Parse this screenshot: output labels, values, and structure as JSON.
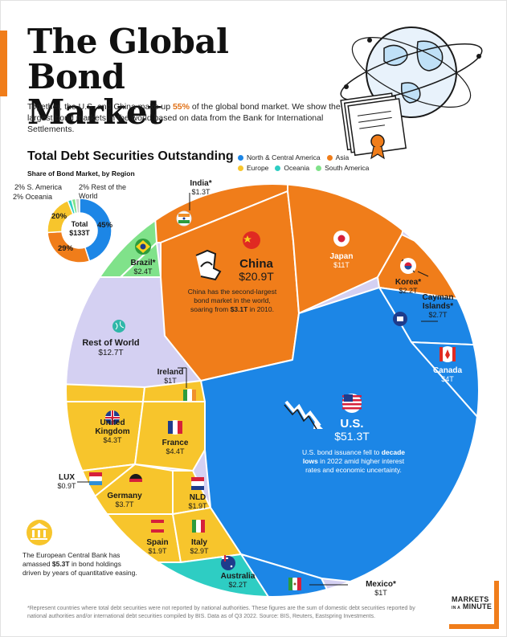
{
  "page": {
    "title_line1": "The Global",
    "title_line2": "Bond Market",
    "intro_pre": "Together, the U.S. and China make up ",
    "intro_highlight": "55%",
    "intro_post": " of the global bond market. We show the largest bond markets in the world based on data from the Bank for International Settlements.",
    "section_title": "Total Debt Securities Outstanding",
    "share_title": "Share of Bond Market, by Region",
    "footnote": "*Represent countries where total debt securities were not reported by national authorities. These figures are the sum of domestic debt securities reported by national authorities and/or international debt securities compiled by BIS. Data as of Q3 2022. Source: BIS, Reuters, Eastspring Investments.",
    "brand_line1": "MARKETS",
    "brand_line2_small": "IN A",
    "brand_line2": "MINUTE"
  },
  "colors": {
    "north_central_america": "#1c86e6",
    "asia": "#f07d1a",
    "europe": "#f7c52c",
    "oceania": "#2ecdc3",
    "south_america": "#80e28a",
    "rest_of_world": "#d4d0f2",
    "accent": "#f07d1a"
  },
  "legend": [
    {
      "label": "North & Central America",
      "color": "#1c86e6"
    },
    {
      "label": "Asia",
      "color": "#f07d1a"
    },
    {
      "label": "Europe",
      "color": "#f7c52c"
    },
    {
      "label": "Oceania",
      "color": "#2ecdc3"
    },
    {
      "label": "South America",
      "color": "#80e28a"
    }
  ],
  "annotations": {
    "china_line1": "China has the second-largest",
    "china_line2": "bond market in the world,",
    "china_line3_pre": "soaring from ",
    "china_line3_bold": "$3.1T",
    "china_line3_post": " in 2010.",
    "us_line1_pre": "U.S. bond issuance fell to ",
    "us_line1_bold": "decade",
    "us_line2_bold": "lows",
    "us_line2_post": " in 2022 amid higher interest",
    "us_line3": "rates and economic uncertainty.",
    "ecb_line1": "The European Central Bank has",
    "ecb_line2_pre": "amassed ",
    "ecb_line2_bold": "$5.3T",
    "ecb_line2_post": " in bond holdings",
    "ecb_line3": "driven by years of quantitative easing."
  },
  "chart_data": [
    {
      "type": "pie",
      "title": "Share of Bond Market, by Region",
      "center_label_line1": "Total",
      "center_label_line2": "$133T",
      "categories": [
        "North & Central America",
        "Asia",
        "Europe",
        "Oceania",
        "South America",
        "Rest of the World"
      ],
      "values": [
        45,
        29,
        20,
        2,
        2,
        2
      ],
      "value_labels": [
        "45%",
        "29%",
        "20%",
        "2% Oceania",
        "2% S. America",
        "2% Rest of the World"
      ],
      "unit": "%"
    },
    {
      "type": "treemap",
      "title": "Total Debt Securities Outstanding",
      "unit": "USD trillions",
      "items": [
        {
          "name": "U.S.",
          "value": 51.3,
          "label": "$51.3T",
          "region": "North & Central America"
        },
        {
          "name": "China",
          "value": 20.9,
          "label": "$20.9T",
          "region": "Asia"
        },
        {
          "name": "Rest of World",
          "value": 12.7,
          "label": "$12.7T",
          "region": "Rest of World"
        },
        {
          "name": "Japan",
          "value": 11,
          "label": "$11T",
          "region": "Asia"
        },
        {
          "name": "France",
          "value": 4.4,
          "label": "$4.4T",
          "region": "Europe"
        },
        {
          "name": "United Kingdom",
          "value": 4.3,
          "label": "$4.3T",
          "region": "Europe"
        },
        {
          "name": "Canada",
          "value": 4,
          "label": "$4T",
          "region": "North & Central America"
        },
        {
          "name": "Germany",
          "value": 3.7,
          "label": "$3.7T",
          "region": "Europe"
        },
        {
          "name": "Italy",
          "value": 2.9,
          "label": "$2.9T",
          "region": "Europe"
        },
        {
          "name": "Cayman Islands*",
          "value": 2.7,
          "label": "$2.7T",
          "region": "North & Central America"
        },
        {
          "name": "Brazil*",
          "value": 2.4,
          "label": "$2.4T",
          "region": "South America"
        },
        {
          "name": "Korea*",
          "value": 2.2,
          "label": "$2.2T",
          "region": "Asia"
        },
        {
          "name": "Australia",
          "value": 2.2,
          "label": "$2.2T",
          "region": "Oceania"
        },
        {
          "name": "Spain",
          "value": 1.9,
          "label": "$1.9T",
          "region": "Europe"
        },
        {
          "name": "NLD",
          "value": 1.9,
          "label": "$1.9T",
          "region": "Europe"
        },
        {
          "name": "India*",
          "value": 1.3,
          "label": "$1.3T",
          "region": "Asia"
        },
        {
          "name": "Ireland",
          "value": 1,
          "label": "$1T",
          "region": "Europe"
        },
        {
          "name": "Mexico*",
          "value": 1,
          "label": "$1T",
          "region": "North & Central America"
        },
        {
          "name": "LUX",
          "value": 0.9,
          "label": "$0.9T",
          "region": "Europe"
        }
      ]
    }
  ]
}
